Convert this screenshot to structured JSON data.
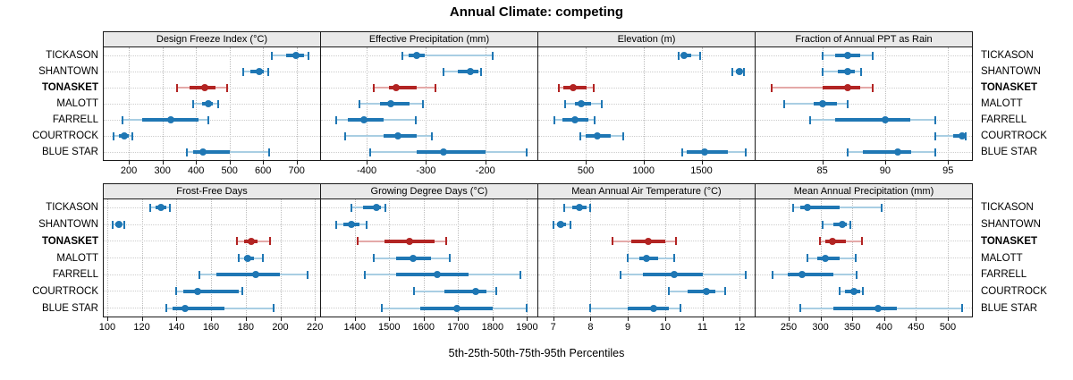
{
  "title": "Annual Climate: competing",
  "xlabel": "5th-25th-50th-75th-95th Percentiles",
  "percentile_labels": [
    "5th",
    "25th",
    "50th",
    "75th",
    "95th"
  ],
  "stations": [
    "TICKASON",
    "SHANTOWN",
    "TONASKET",
    "MALOTT",
    "FARRELL",
    "COURTROCK",
    "BLUE STAR"
  ],
  "highlight_station": "TONASKET",
  "colors": {
    "series_dark": "#1f77b4",
    "series_light": "#a9cee3",
    "highlight_dark": "#b22423",
    "highlight_light": "#e4a9a8",
    "panel_header_bg": "#e9e9e9",
    "panel_border": "#1a1a1a",
    "grid_vertical": "#bdbdbd",
    "grid_horizontal": "#cdcdcd",
    "text": "#000000"
  },
  "chart_data": {
    "type": "dot-interval percentile lattice (5th-25th-50th-75th-95th)",
    "title": "Annual Climate: competing",
    "xlabel": "5th-25th-50th-75th-95th Percentiles",
    "categories": [
      "TICKASON",
      "SHANTOWN",
      "TONASKET",
      "MALOTT",
      "FARRELL",
      "COURTROCK",
      "BLUE STAR"
    ],
    "legend": "none",
    "grid": "dotted",
    "panels": [
      {
        "title": "Design Freeze Index (°C)",
        "row": 0,
        "col": 0,
        "xlim": [
          125,
          770
        ],
        "ticks": [
          200,
          300,
          400,
          500,
          600,
          700
        ],
        "values": [
          {
            "station": "TICKASON",
            "p": [
              627,
              668,
              698,
              722,
              735
            ]
          },
          {
            "station": "SHANTOWN",
            "p": [
              540,
              563,
              588,
              603,
              614
            ]
          },
          {
            "station": "TONASKET",
            "p": [
              343,
              382,
              427,
              459,
              494
            ]
          },
          {
            "station": "MALOTT",
            "p": [
              392,
              419,
              436,
              451,
              466
            ]
          },
          {
            "station": "FARRELL",
            "p": [
              180,
              240,
              325,
              409,
              438
            ]
          },
          {
            "station": "COURTROCK",
            "p": [
              155,
              171,
              186,
              200,
              211
            ]
          },
          {
            "station": "BLUE STAR",
            "p": [
              372,
              392,
              420,
              500,
              618
            ]
          }
        ]
      },
      {
        "title": "Effective Precipitation (mm)",
        "row": 0,
        "col": 1,
        "xlim": [
          -477,
          -112
        ],
        "ticks": [
          -400,
          -300,
          -200
        ],
        "values": [
          {
            "station": "TICKASON",
            "p": [
              -340,
              -329,
              -316,
              -302,
              -188
            ]
          },
          {
            "station": "SHANTOWN",
            "p": [
              -270,
              -247,
              -225,
              -212,
              -207
            ]
          },
          {
            "station": "TONASKET",
            "p": [
              -388,
              -362,
              -350,
              -316,
              -284
            ]
          },
          {
            "station": "MALOTT",
            "p": [
              -412,
              -377,
              -359,
              -327,
              -305
            ]
          },
          {
            "station": "FARRELL",
            "p": [
              -452,
              -432,
              -404,
              -372,
              -317
            ]
          },
          {
            "station": "COURTROCK",
            "p": [
              -436,
              -372,
              -348,
              -315,
              -290
            ]
          },
          {
            "station": "BLUE STAR",
            "p": [
              -394,
              -315,
              -270,
              -200,
              -130
            ]
          }
        ]
      },
      {
        "title": "Elevation (m)",
        "row": 0,
        "col": 2,
        "xlim": [
          90,
          1960
        ],
        "ticks": [
          500,
          1000,
          1500
        ],
        "values": [
          {
            "station": "TICKASON",
            "p": [
              1305,
              1330,
              1352,
              1408,
              1490
            ]
          },
          {
            "station": "SHANTOWN",
            "p": [
              1770,
              1800,
              1830,
              1852,
              1870
            ]
          },
          {
            "station": "TONASKET",
            "p": [
              265,
              305,
              392,
              510,
              565
            ]
          },
          {
            "station": "MALOTT",
            "p": [
              320,
              410,
              462,
              550,
              640
            ]
          },
          {
            "station": "FARRELL",
            "p": [
              225,
              295,
              403,
              525,
              580
            ]
          },
          {
            "station": "COURTROCK",
            "p": [
              450,
              500,
              600,
              715,
              820
            ]
          },
          {
            "station": "BLUE STAR",
            "p": [
              1335,
              1372,
              1530,
              1730,
              1885
            ]
          }
        ]
      },
      {
        "title": "Fraction of Annual PPT as Rain",
        "row": 0,
        "col": 3,
        "xlim": [
          79.7,
          96.9
        ],
        "ticks": [
          85,
          90,
          95
        ],
        "values": [
          {
            "station": "TICKASON",
            "p": [
              85,
              86,
              87,
              88,
              89
            ]
          },
          {
            "station": "SHANTOWN",
            "p": [
              85,
              86.2,
              87,
              87.6,
              88.1
            ]
          },
          {
            "station": "TONASKET",
            "p": [
              81,
              85,
              87,
              88,
              89
            ]
          },
          {
            "station": "MALOTT",
            "p": [
              82,
              84.3,
              85,
              86.2,
              87
            ]
          },
          {
            "station": "FARRELL",
            "p": [
              84,
              86,
              90,
              92,
              94
            ]
          },
          {
            "station": "COURTROCK",
            "p": [
              94,
              95.4,
              96.1,
              96.3,
              96.4
            ]
          },
          {
            "station": "BLUE STAR",
            "p": [
              87,
              88.2,
              91,
              92.1,
              94
            ]
          }
        ]
      },
      {
        "title": "Frost-Free Days",
        "row": 1,
        "col": 0,
        "xlim": [
          98,
          223
        ],
        "ticks": [
          100,
          120,
          140,
          160,
          180,
          200,
          220
        ],
        "values": [
          {
            "station": "TICKASON",
            "p": [
              125,
              128,
              131,
              134,
              136
            ]
          },
          {
            "station": "SHANTOWN",
            "p": [
              103,
              104.5,
              106.5,
              108.5,
              110
            ]
          },
          {
            "station": "TONASKET",
            "p": [
              175,
              179,
              183,
              187,
              194
            ]
          },
          {
            "station": "MALOTT",
            "p": [
              176,
              179,
              181,
              185,
              190
            ]
          },
          {
            "station": "FARRELL",
            "p": [
              153,
              163,
              186,
              200,
              216
            ]
          },
          {
            "station": "COURTROCK",
            "p": [
              140,
              144,
              152,
              176,
              178
            ]
          },
          {
            "station": "BLUE STAR",
            "p": [
              134,
              138,
              145,
              168,
              196
            ]
          }
        ]
      },
      {
        "title": "Growing Degree Days (°C)",
        "row": 1,
        "col": 1,
        "xlim": [
          1302,
          1930
        ],
        "ticks": [
          1400,
          1500,
          1600,
          1700,
          1800,
          1900
        ],
        "values": [
          {
            "station": "TICKASON",
            "p": [
              1391,
              1423,
              1462,
              1477,
              1490
            ]
          },
          {
            "station": "SHANTOWN",
            "p": [
              1347,
              1368,
              1390,
              1414,
              1434
            ]
          },
          {
            "station": "TONASKET",
            "p": [
              1407,
              1485,
              1560,
              1632,
              1665
            ]
          },
          {
            "station": "MALOTT",
            "p": [
              1454,
              1520,
              1570,
              1622,
              1676
            ]
          },
          {
            "station": "FARRELL",
            "p": [
              1428,
              1520,
              1640,
              1730,
              1880
            ]
          },
          {
            "station": "COURTROCK",
            "p": [
              1572,
              1660,
              1750,
              1782,
              1810
            ]
          },
          {
            "station": "BLUE STAR",
            "p": [
              1479,
              1590,
              1697,
              1800,
              1900
            ]
          }
        ]
      },
      {
        "title": "Mean Annual Air Temperature (°C)",
        "row": 1,
        "col": 2,
        "xlim": [
          6.6,
          12.4
        ],
        "ticks": [
          7,
          8,
          9,
          10,
          11,
          12
        ],
        "values": [
          {
            "station": "TICKASON",
            "p": [
              7.3,
              7.5,
              7.7,
              7.9,
              8.0
            ]
          },
          {
            "station": "SHANTOWN",
            "p": [
              7.0,
              7.1,
              7.2,
              7.35,
              7.45
            ]
          },
          {
            "station": "TONASKET",
            "p": [
              8.6,
              9.1,
              9.55,
              10.0,
              10.3
            ]
          },
          {
            "station": "MALOTT",
            "p": [
              9.0,
              9.3,
              9.5,
              9.8,
              10.25
            ]
          },
          {
            "station": "FARRELL",
            "p": [
              8.8,
              9.4,
              10.25,
              11.0,
              12.15
            ]
          },
          {
            "station": "COURTROCK",
            "p": [
              10.1,
              10.6,
              11.1,
              11.35,
              11.6
            ]
          },
          {
            "station": "BLUE STAR",
            "p": [
              8.0,
              9.0,
              9.7,
              10.1,
              10.4
            ]
          }
        ]
      },
      {
        "title": "Mean Annual Precipitation (mm)",
        "row": 1,
        "col": 3,
        "xlim": [
          198,
          538
        ],
        "ticks": [
          250,
          300,
          350,
          400,
          450,
          500
        ],
        "values": [
          {
            "station": "TICKASON",
            "p": [
              257,
              268,
              280,
              330,
              396
            ]
          },
          {
            "station": "SHANTOWN",
            "p": [
              304,
              320,
              334,
              342,
              347
            ]
          },
          {
            "station": "TONASKET",
            "p": [
              299,
              308,
              319,
              340,
              365
            ]
          },
          {
            "station": "MALOTT",
            "p": [
              279,
              295,
              307,
              330,
              355
            ]
          },
          {
            "station": "FARRELL",
            "p": [
              225,
              248,
              271,
              320,
              356
            ]
          },
          {
            "station": "COURTROCK",
            "p": [
              330,
              338,
              352,
              362,
              367
            ]
          },
          {
            "station": "BLUE STAR",
            "p": [
              268,
              320,
              390,
              420,
              522
            ]
          }
        ]
      }
    ]
  }
}
